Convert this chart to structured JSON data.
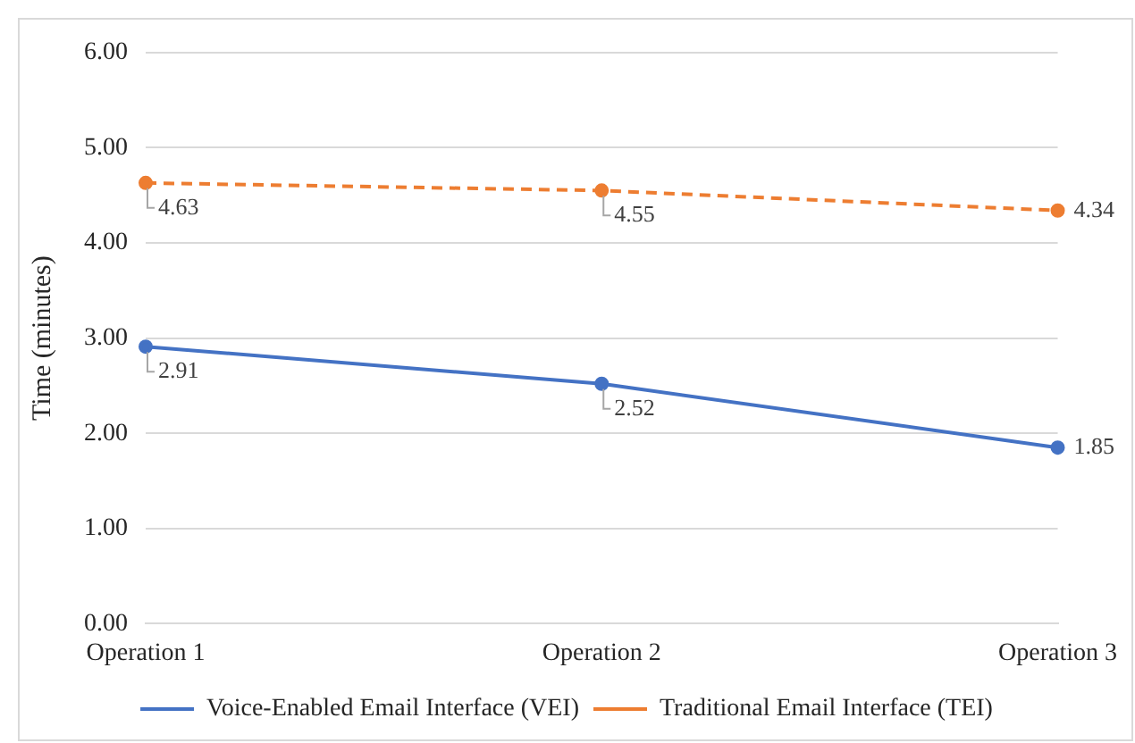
{
  "chart_data": {
    "type": "line",
    "ylabel": "Time (minutes)",
    "categories": [
      "Operation 1",
      "Operation 2",
      "Operation 3"
    ],
    "series": [
      {
        "name": "Voice-Enabled Email Interface (VEI)",
        "color": "#4472c4",
        "values": [
          2.91,
          2.52,
          1.85
        ],
        "line_style": "solid"
      },
      {
        "name": "Traditional Email Interface (TEI)",
        "color": "#ed7d31",
        "values": [
          4.63,
          4.55,
          4.34
        ],
        "line_style": "dashed"
      }
    ],
    "ylim": [
      0,
      6
    ],
    "yticks": [
      {
        "value": 0,
        "label": "0.00"
      },
      {
        "value": 1,
        "label": "1.00"
      },
      {
        "value": 2,
        "label": "2.00"
      },
      {
        "value": 3,
        "label": "3.00"
      },
      {
        "value": 4,
        "label": "4.00"
      },
      {
        "value": 5,
        "label": "5.00"
      },
      {
        "value": 6,
        "label": "6.00"
      }
    ],
    "grid": "y",
    "legend": "bottom",
    "marker": "circle",
    "data_labels": true
  }
}
